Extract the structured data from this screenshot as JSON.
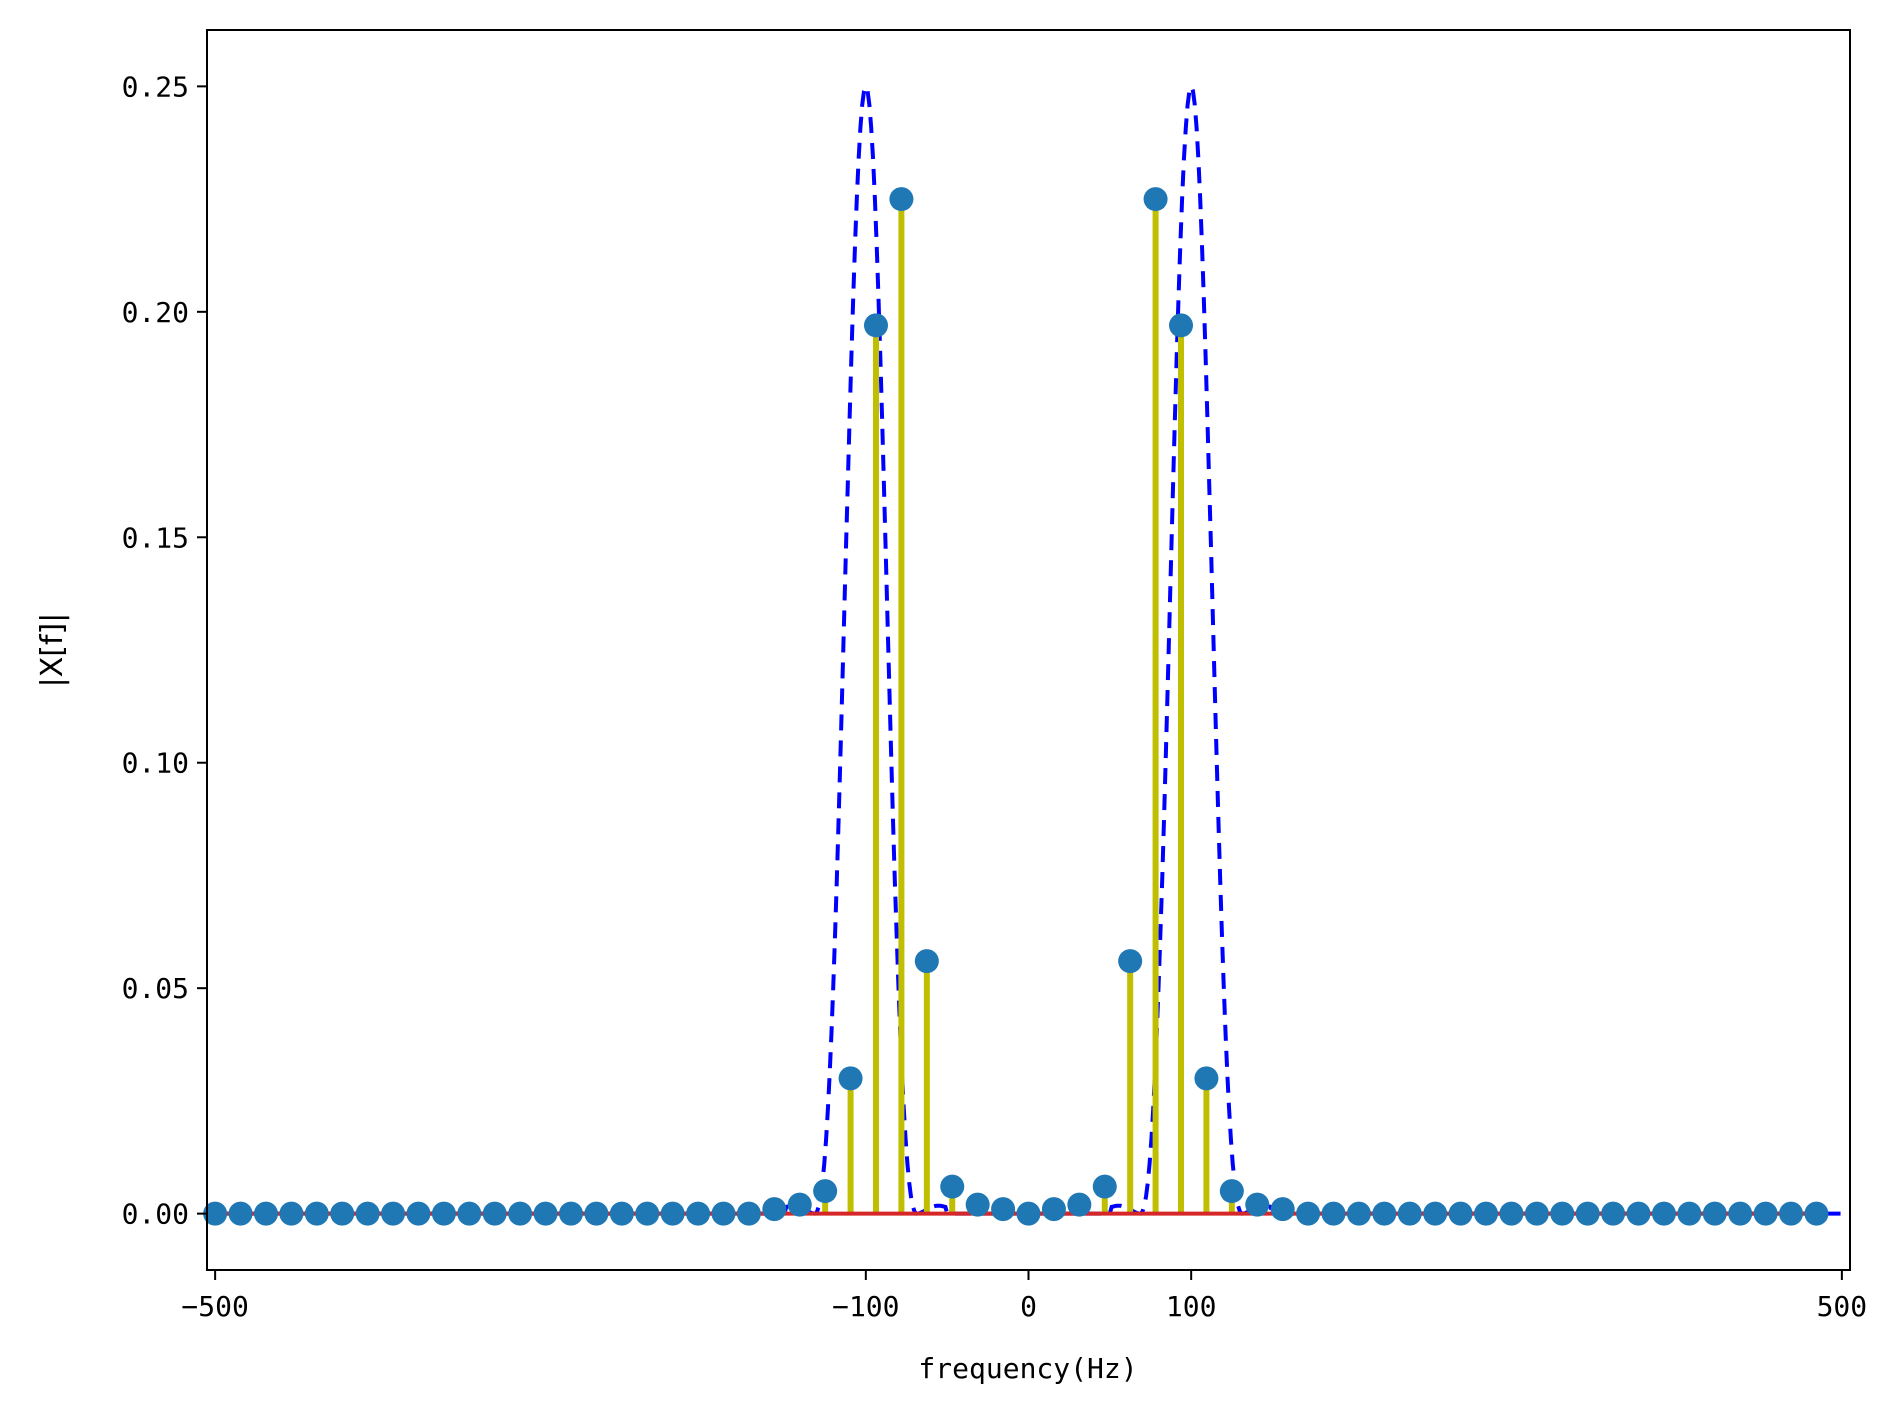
{
  "chart_data": {
    "type": "stem",
    "title": "",
    "xlabel": "frequency(Hz)",
    "ylabel": "|X[f]|",
    "xlim": [
      -505,
      505
    ],
    "ylim": [
      -0.0125,
      0.2625
    ],
    "x_ticks": [
      -500,
      -100,
      0,
      100,
      500
    ],
    "x_tick_labels": [
      "−500",
      "−100",
      "0",
      "100",
      "500"
    ],
    "y_ticks": [
      0.0,
      0.05,
      0.1,
      0.15,
      0.2,
      0.25
    ],
    "y_tick_labels": [
      "0.00",
      "0.05",
      "0.10",
      "0.15",
      "0.20",
      "0.25"
    ],
    "grid": false,
    "stem_markers": {
      "x_start": -500,
      "x_step": 15.625,
      "count": 64,
      "values_nonzero": {
        "-125": 0.005,
        "-109.375": 0.03,
        "-93.75": 0.197,
        "-78.125": 0.225,
        "-62.5": 0.056,
        "-46.875": 0.006,
        "-31.25": 0.002,
        "-15.625": 0.001,
        "-140.625": 0.002,
        "-156.25": 0.001,
        "15.625": 0.001,
        "31.25": 0.002,
        "46.875": 0.006,
        "62.5": 0.056,
        "78.125": 0.225,
        "93.75": 0.197,
        "109.375": 0.03,
        "125": 0.005,
        "140.625": 0.002,
        "156.25": 0.001
      }
    },
    "envelope": {
      "center_freqs": [
        -100,
        100
      ],
      "peak": 0.25,
      "half_width_hz": 31.25,
      "style": "dashed"
    },
    "colors": {
      "marker": "#1f77b4",
      "stem": "#bfbf00",
      "baseline": "#d62728",
      "envelope": "#0000ff"
    }
  }
}
